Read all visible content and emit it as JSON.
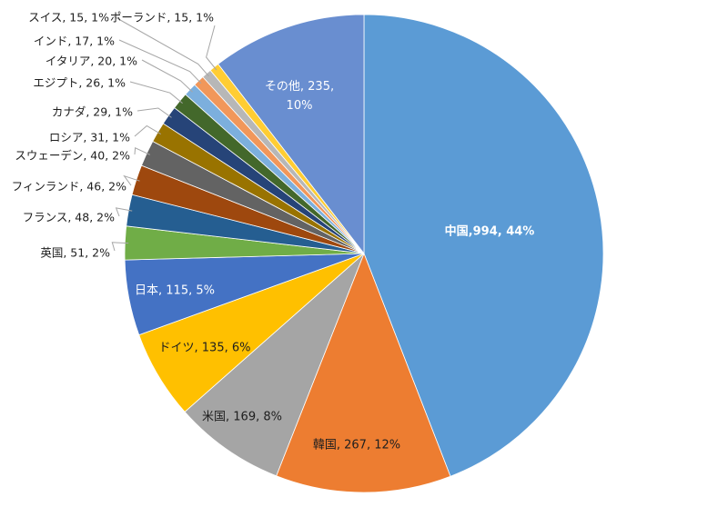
{
  "chart_data": {
    "type": "pie",
    "title": "",
    "start_angle_deg": 0,
    "direction": "clockwise",
    "slices": [
      {
        "name": "中国",
        "value": 994,
        "label": "中国,994, 44%",
        "color": "#5b9bd5",
        "label_color": "#ffffff",
        "label_bold": true
      },
      {
        "name": "韓国",
        "value": 267,
        "label": "韓国, 267, 12%",
        "color": "#ed7d31",
        "label_color": "#1f1f1f",
        "label_bold": false
      },
      {
        "name": "米国",
        "value": 169,
        "label": "米国, 169, 8%",
        "color": "#a5a5a5",
        "label_color": "#1f1f1f",
        "label_bold": false
      },
      {
        "name": "ドイツ",
        "value": 135,
        "label": "ドイツ, 135, 6%",
        "color": "#ffc000",
        "label_color": "#1f1f1f",
        "label_bold": false
      },
      {
        "name": "日本",
        "value": 115,
        "label": "日本, 115, 5%",
        "color": "#4472c4",
        "label_color": "#ffffff",
        "label_bold": false
      },
      {
        "name": "英国",
        "value": 51,
        "label": "英国, 51, 2%",
        "color": "#70ad47",
        "label_color": "#1f1f1f",
        "label_bold": false
      },
      {
        "name": "フランス",
        "value": 48,
        "label": "フランス, 48, 2%",
        "color": "#255e91",
        "label_color": "#1f1f1f",
        "label_bold": false
      },
      {
        "name": "フィンランド",
        "value": 46,
        "label": "フィンランド, 46, 2%",
        "color": "#9e480e",
        "label_color": "#1f1f1f",
        "label_bold": false
      },
      {
        "name": "スウェーデン",
        "value": 40,
        "label": "スウェーデン, 40, 2%",
        "color": "#636363",
        "label_color": "#1f1f1f",
        "label_bold": false
      },
      {
        "name": "ロシア",
        "value": 31,
        "label": "ロシア, 31, 1%",
        "color": "#997300",
        "label_color": "#1f1f1f",
        "label_bold": false
      },
      {
        "name": "カナダ",
        "value": 29,
        "label": "カナダ, 29, 1%",
        "color": "#264478",
        "label_color": "#1f1f1f",
        "label_bold": false
      },
      {
        "name": "エジプト",
        "value": 26,
        "label": "エジプト, 26, 1%",
        "color": "#43682b",
        "label_color": "#1f1f1f",
        "label_bold": false
      },
      {
        "name": "イタリア",
        "value": 20,
        "label": "イタリア, 20, 1%",
        "color": "#7cafdd",
        "label_color": "#1f1f1f",
        "label_bold": false
      },
      {
        "name": "インド",
        "value": 17,
        "label": "インド, 17, 1%",
        "color": "#f1975a",
        "label_color": "#1f1f1f",
        "label_bold": false
      },
      {
        "name": "スイス",
        "value": 15,
        "label": "スイス, 15, 1%",
        "color": "#b7b7b7",
        "label_color": "#1f1f1f",
        "label_bold": false
      },
      {
        "name": "ポーランド",
        "value": 15,
        "label": "ポーランド, 15, 1%",
        "color": "#ffcd33",
        "label_color": "#1f1f1f",
        "label_bold": false
      },
      {
        "name": "その他",
        "value": 235,
        "label": "その他, 235, 10%",
        "color": "#698ed0",
        "label_color": "#ffffff",
        "label_bold": false
      }
    ],
    "legend": "none",
    "leader_lines": true
  }
}
